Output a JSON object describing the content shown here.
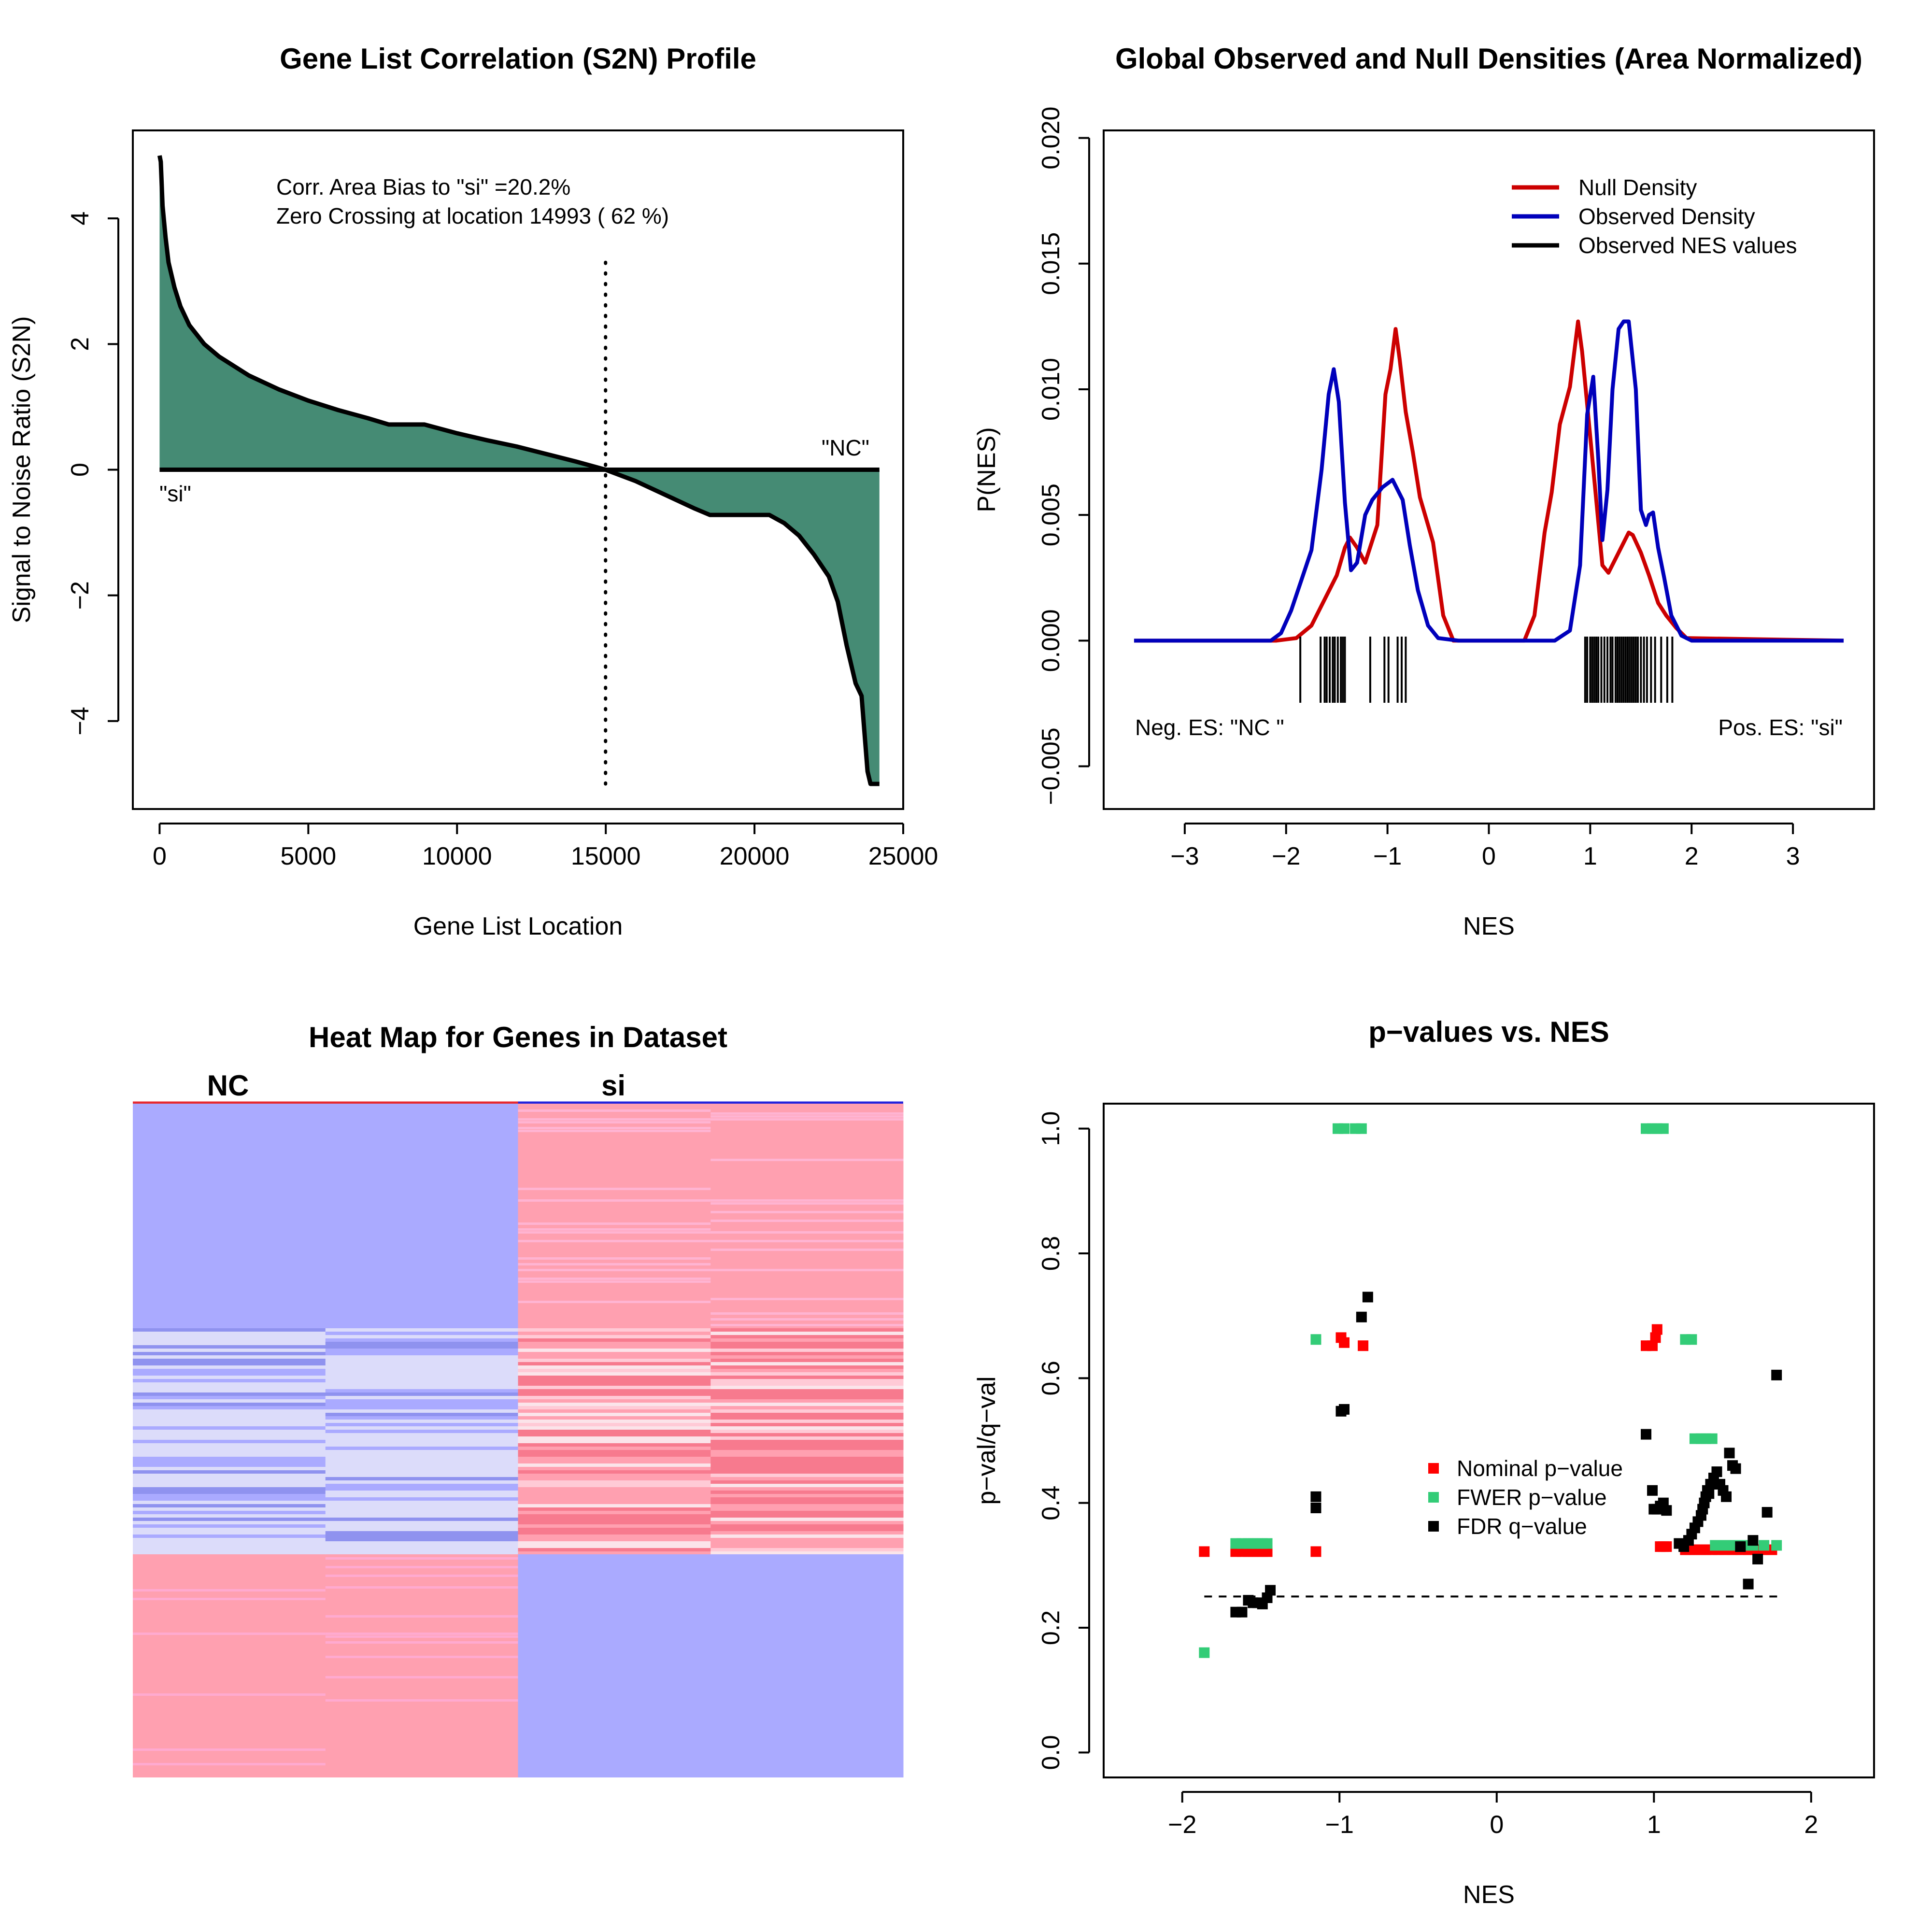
{
  "chart_data": [
    {
      "type": "area",
      "title": "Gene List Correlation (S2N) Profile",
      "xlabel": "Gene List Location",
      "ylabel": "Signal to Noise Ratio (S2N)",
      "xlim": [
        -900,
        25000
      ],
      "ylim": [
        -5.4,
        5.4
      ],
      "xticks": [
        0,
        5000,
        10000,
        15000,
        20000,
        25000
      ],
      "yticks": [
        -4,
        -2,
        0,
        2,
        4
      ],
      "xtick_labels": [
        "0",
        "5000",
        "10000",
        "15000",
        "20000",
        "25000"
      ],
      "ytick_labels": [
        "−4",
        "−2",
        "0",
        "2",
        "4"
      ],
      "fill_color": "#458b74",
      "x": [
        0,
        40,
        100,
        200,
        300,
        500,
        700,
        1000,
        1500,
        2000,
        3000,
        4000,
        5000,
        6000,
        7000,
        7700,
        8900,
        10000,
        11000,
        12000,
        13000,
        14000,
        14993,
        16000,
        17000,
        18000,
        18500,
        19500,
        20500,
        21000,
        21500,
        22000,
        22500,
        22800,
        23100,
        23400,
        23600,
        23700,
        23800,
        23900,
        24200
      ],
      "values": [
        5.0,
        4.9,
        4.2,
        3.7,
        3.3,
        2.9,
        2.6,
        2.3,
        2.0,
        1.8,
        1.5,
        1.28,
        1.1,
        0.95,
        0.82,
        0.72,
        0.72,
        0.58,
        0.47,
        0.37,
        0.25,
        0.13,
        0.0,
        -0.18,
        -0.4,
        -0.62,
        -0.72,
        -0.72,
        -0.72,
        -0.85,
        -1.05,
        -1.35,
        -1.7,
        -2.1,
        -2.8,
        -3.4,
        -3.6,
        -4.2,
        -4.8,
        -5.0,
        -5.0
      ],
      "zero_crossing": 14993,
      "annotations": [
        "Corr. Area Bias to \"si\" =20.2%",
        "Zero Crossing at location  14993  ( 62  %)"
      ],
      "label_left": "\"si\"",
      "label_right": "\"NC\""
    },
    {
      "type": "line",
      "title": "Global Observed and Null Densities (Area Normalized)",
      "xlabel": "NES",
      "ylabel": "P(NES)",
      "xlim": [
        -3.8,
        3.8
      ],
      "ylim": [
        -0.0067,
        0.0203
      ],
      "xticks": [
        -3,
        -2,
        -1,
        0,
        1,
        2,
        3
      ],
      "xtick_labels": [
        "−3",
        "−2",
        "−1",
        "0",
        "1",
        "2",
        "3"
      ],
      "yticks": [
        -0.005,
        0.0,
        0.005,
        0.01,
        0.015,
        0.02
      ],
      "ytick_labels": [
        "−0.005",
        "0.000",
        "0.005",
        "0.010",
        "0.015",
        "0.020"
      ],
      "legend_position": "top-right",
      "series": [
        {
          "name": "Null Density",
          "color": "#cc0000",
          "x": [
            -3.5,
            -2.1,
            -1.9,
            -1.75,
            -1.6,
            -1.5,
            -1.42,
            -1.37,
            -1.3,
            -1.22,
            -1.1,
            -1.02,
            -0.97,
            -0.92,
            -0.88,
            -0.82,
            -0.75,
            -0.68,
            -0.6,
            -0.55,
            -0.45,
            -0.35,
            0.35,
            0.45,
            0.55,
            0.62,
            0.7,
            0.8,
            0.88,
            0.92,
            0.97,
            1.05,
            1.12,
            1.18,
            1.28,
            1.38,
            1.42,
            1.5,
            1.58,
            1.67,
            1.75,
            1.85,
            1.95,
            3.5
          ],
          "y": [
            0,
            0,
            0.0001,
            0.0006,
            0.0018,
            0.0026,
            0.0037,
            0.0041,
            0.0037,
            0.0031,
            0.0046,
            0.0098,
            0.0108,
            0.0124,
            0.0112,
            0.0091,
            0.0075,
            0.0057,
            0.0046,
            0.0039,
            0.001,
            0,
            0,
            0.001,
            0.0043,
            0.0059,
            0.0086,
            0.0101,
            0.0127,
            0.0115,
            0.0094,
            0.006,
            0.003,
            0.0027,
            0.0035,
            0.0043,
            0.0042,
            0.0035,
            0.0026,
            0.0015,
            0.001,
            0.0005,
            0.0001,
            0
          ]
        },
        {
          "name": "Observed Density",
          "color": "#0000bb",
          "x": [
            -3.5,
            -2.15,
            -2.05,
            -1.95,
            -1.85,
            -1.75,
            -1.65,
            -1.58,
            -1.53,
            -1.48,
            -1.42,
            -1.36,
            -1.3,
            -1.22,
            -1.15,
            -1.05,
            -0.95,
            -0.85,
            -0.78,
            -0.7,
            -0.6,
            -0.5,
            -0.3,
            0.65,
            0.8,
            0.9,
            0.97,
            1.03,
            1.08,
            1.12,
            1.17,
            1.22,
            1.28,
            1.33,
            1.38,
            1.45,
            1.5,
            1.55,
            1.58,
            1.62,
            1.67,
            1.73,
            1.8,
            1.9,
            2.0,
            3.5
          ],
          "y": [
            0,
            0,
            0.0003,
            0.0012,
            0.0024,
            0.0036,
            0.0068,
            0.0098,
            0.0108,
            0.0095,
            0.0055,
            0.0028,
            0.0031,
            0.005,
            0.0056,
            0.0061,
            0.0064,
            0.0056,
            0.0038,
            0.002,
            0.0006,
            0.0001,
            0,
            0,
            0.0004,
            0.003,
            0.009,
            0.0105,
            0.0072,
            0.004,
            0.006,
            0.01,
            0.0124,
            0.0127,
            0.0127,
            0.01,
            0.0052,
            0.0046,
            0.005,
            0.0051,
            0.0037,
            0.0025,
            0.001,
            0.0002,
            0,
            0
          ]
        },
        {
          "name": "Observed NES values",
          "color": "#000000",
          "rug": [
            -1.86,
            -1.66,
            -1.62,
            -1.6,
            -1.57,
            -1.54,
            -1.52,
            -1.49,
            -1.46,
            -1.44,
            -1.42,
            -1.17,
            -1.03,
            -0.99,
            -0.9,
            -0.86,
            -0.82,
            0.95,
            0.97,
            1.0,
            1.02,
            1.04,
            1.06,
            1.08,
            1.11,
            1.14,
            1.17,
            1.2,
            1.22,
            1.25,
            1.27,
            1.29,
            1.31,
            1.33,
            1.35,
            1.37,
            1.39,
            1.41,
            1.43,
            1.45,
            1.47,
            1.5,
            1.53,
            1.56,
            1.6,
            1.64,
            1.7,
            1.76,
            1.81
          ]
        }
      ],
      "annotations": [
        "Neg. ES: \"NC \"",
        "Pos. ES: \"si\""
      ]
    },
    {
      "type": "heatmap",
      "title": "Heat Map for Genes in Dataset",
      "groups": [
        "NC",
        "si"
      ],
      "group_colors": [
        "#e8282f",
        "#2222dd"
      ],
      "columns": 4,
      "colors": {
        "blue": "#aaaaff",
        "pink": "#ffa0b0",
        "deep_pink": "#f77a8e",
        "mid_blue": "#8f92ef",
        "pale": "#dcdcfa"
      }
    },
    {
      "type": "scatter",
      "title": "p−values vs. NES",
      "xlabel": "NES",
      "ylabel": "p−val/q−val",
      "xlim": [
        -2.5,
        2.4
      ],
      "ylim": [
        -0.04,
        1.04
      ],
      "xticks": [
        -2,
        -1,
        0,
        1,
        2
      ],
      "xtick_labels": [
        "−2",
        "−1",
        "0",
        "1",
        "2"
      ],
      "yticks": [
        0.0,
        0.2,
        0.4,
        0.6,
        0.8,
        1.0
      ],
      "ytick_labels": [
        "0.0",
        "0.2",
        "0.4",
        "0.6",
        "0.8",
        "1.0"
      ],
      "threshold": 0.25,
      "threshold_range": [
        -1.86,
        1.8
      ],
      "legend_position": "right",
      "series": [
        {
          "name": "Nominal p−value",
          "color": "#ff0000",
          "x": [
            -1.86,
            -1.66,
            -1.62,
            -1.58,
            -1.55,
            -1.52,
            -1.49,
            -1.46,
            -1.15,
            -0.99,
            -0.97,
            -0.85,
            0.95,
            0.99,
            1.01,
            1.02,
            1.04,
            1.06,
            1.08,
            1.2,
            1.23,
            1.26,
            1.3,
            1.33,
            1.37,
            1.41,
            1.45,
            1.5,
            1.55,
            1.6,
            1.65,
            1.7,
            1.75
          ],
          "y": [
            0.322,
            0.322,
            0.322,
            0.322,
            0.322,
            0.322,
            0.322,
            0.322,
            0.322,
            0.665,
            0.657,
            0.652,
            0.652,
            0.652,
            0.665,
            0.678,
            0.33,
            0.33,
            0.33,
            0.325,
            0.325,
            0.325,
            0.325,
            0.325,
            0.325,
            0.325,
            0.325,
            0.325,
            0.325,
            0.325,
            0.325,
            0.325,
            0.325
          ]
        },
        {
          "name": "FWER p−value",
          "color": "#33cc77",
          "x": [
            -1.86,
            -1.66,
            -1.62,
            -1.58,
            -1.55,
            -1.52,
            -1.49,
            -1.46,
            -1.15,
            -1.01,
            -0.97,
            -0.9,
            -0.86,
            0.95,
            0.99,
            1.02,
            1.06,
            1.2,
            1.24,
            1.26,
            1.3,
            1.33,
            1.37,
            1.39,
            1.43,
            1.47,
            1.51,
            1.55,
            1.59,
            1.63,
            1.7,
            1.78
          ],
          "y": [
            0.16,
            0.335,
            0.335,
            0.335,
            0.335,
            0.335,
            0.335,
            0.335,
            0.662,
            1.0,
            1.0,
            1.0,
            1.0,
            1.0,
            1.0,
            1.0,
            1.0,
            0.662,
            0.662,
            0.503,
            0.503,
            0.503,
            0.503,
            0.332,
            0.332,
            0.332,
            0.332,
            0.332,
            0.332,
            0.332,
            0.332,
            0.332
          ]
        },
        {
          "name": "FDR q−value",
          "color": "#000000",
          "x": [
            -1.66,
            -1.62,
            -1.58,
            -1.55,
            -1.52,
            -1.49,
            -1.46,
            -1.44,
            -1.15,
            -1.15,
            -0.99,
            -0.97,
            -0.86,
            -0.82,
            0.95,
            0.99,
            1.0,
            1.02,
            1.04,
            1.06,
            1.08,
            1.16,
            1.19,
            1.22,
            1.24,
            1.26,
            1.28,
            1.3,
            1.31,
            1.32,
            1.33,
            1.34,
            1.35,
            1.36,
            1.37,
            1.38,
            1.4,
            1.42,
            1.44,
            1.46,
            1.48,
            1.5,
            1.52,
            1.55,
            1.6,
            1.63,
            1.66,
            1.72,
            1.78
          ],
          "y": [
            0.225,
            0.225,
            0.244,
            0.24,
            0.24,
            0.238,
            0.248,
            0.26,
            0.41,
            0.392,
            0.547,
            0.55,
            0.698,
            0.73,
            0.51,
            0.42,
            0.39,
            0.39,
            0.395,
            0.4,
            0.388,
            0.335,
            0.33,
            0.34,
            0.35,
            0.36,
            0.37,
            0.38,
            0.39,
            0.4,
            0.41,
            0.42,
            0.415,
            0.43,
            0.43,
            0.44,
            0.45,
            0.43,
            0.42,
            0.41,
            0.48,
            0.46,
            0.455,
            0.33,
            0.27,
            0.34,
            0.31,
            0.385,
            0.605
          ]
        }
      ]
    }
  ]
}
